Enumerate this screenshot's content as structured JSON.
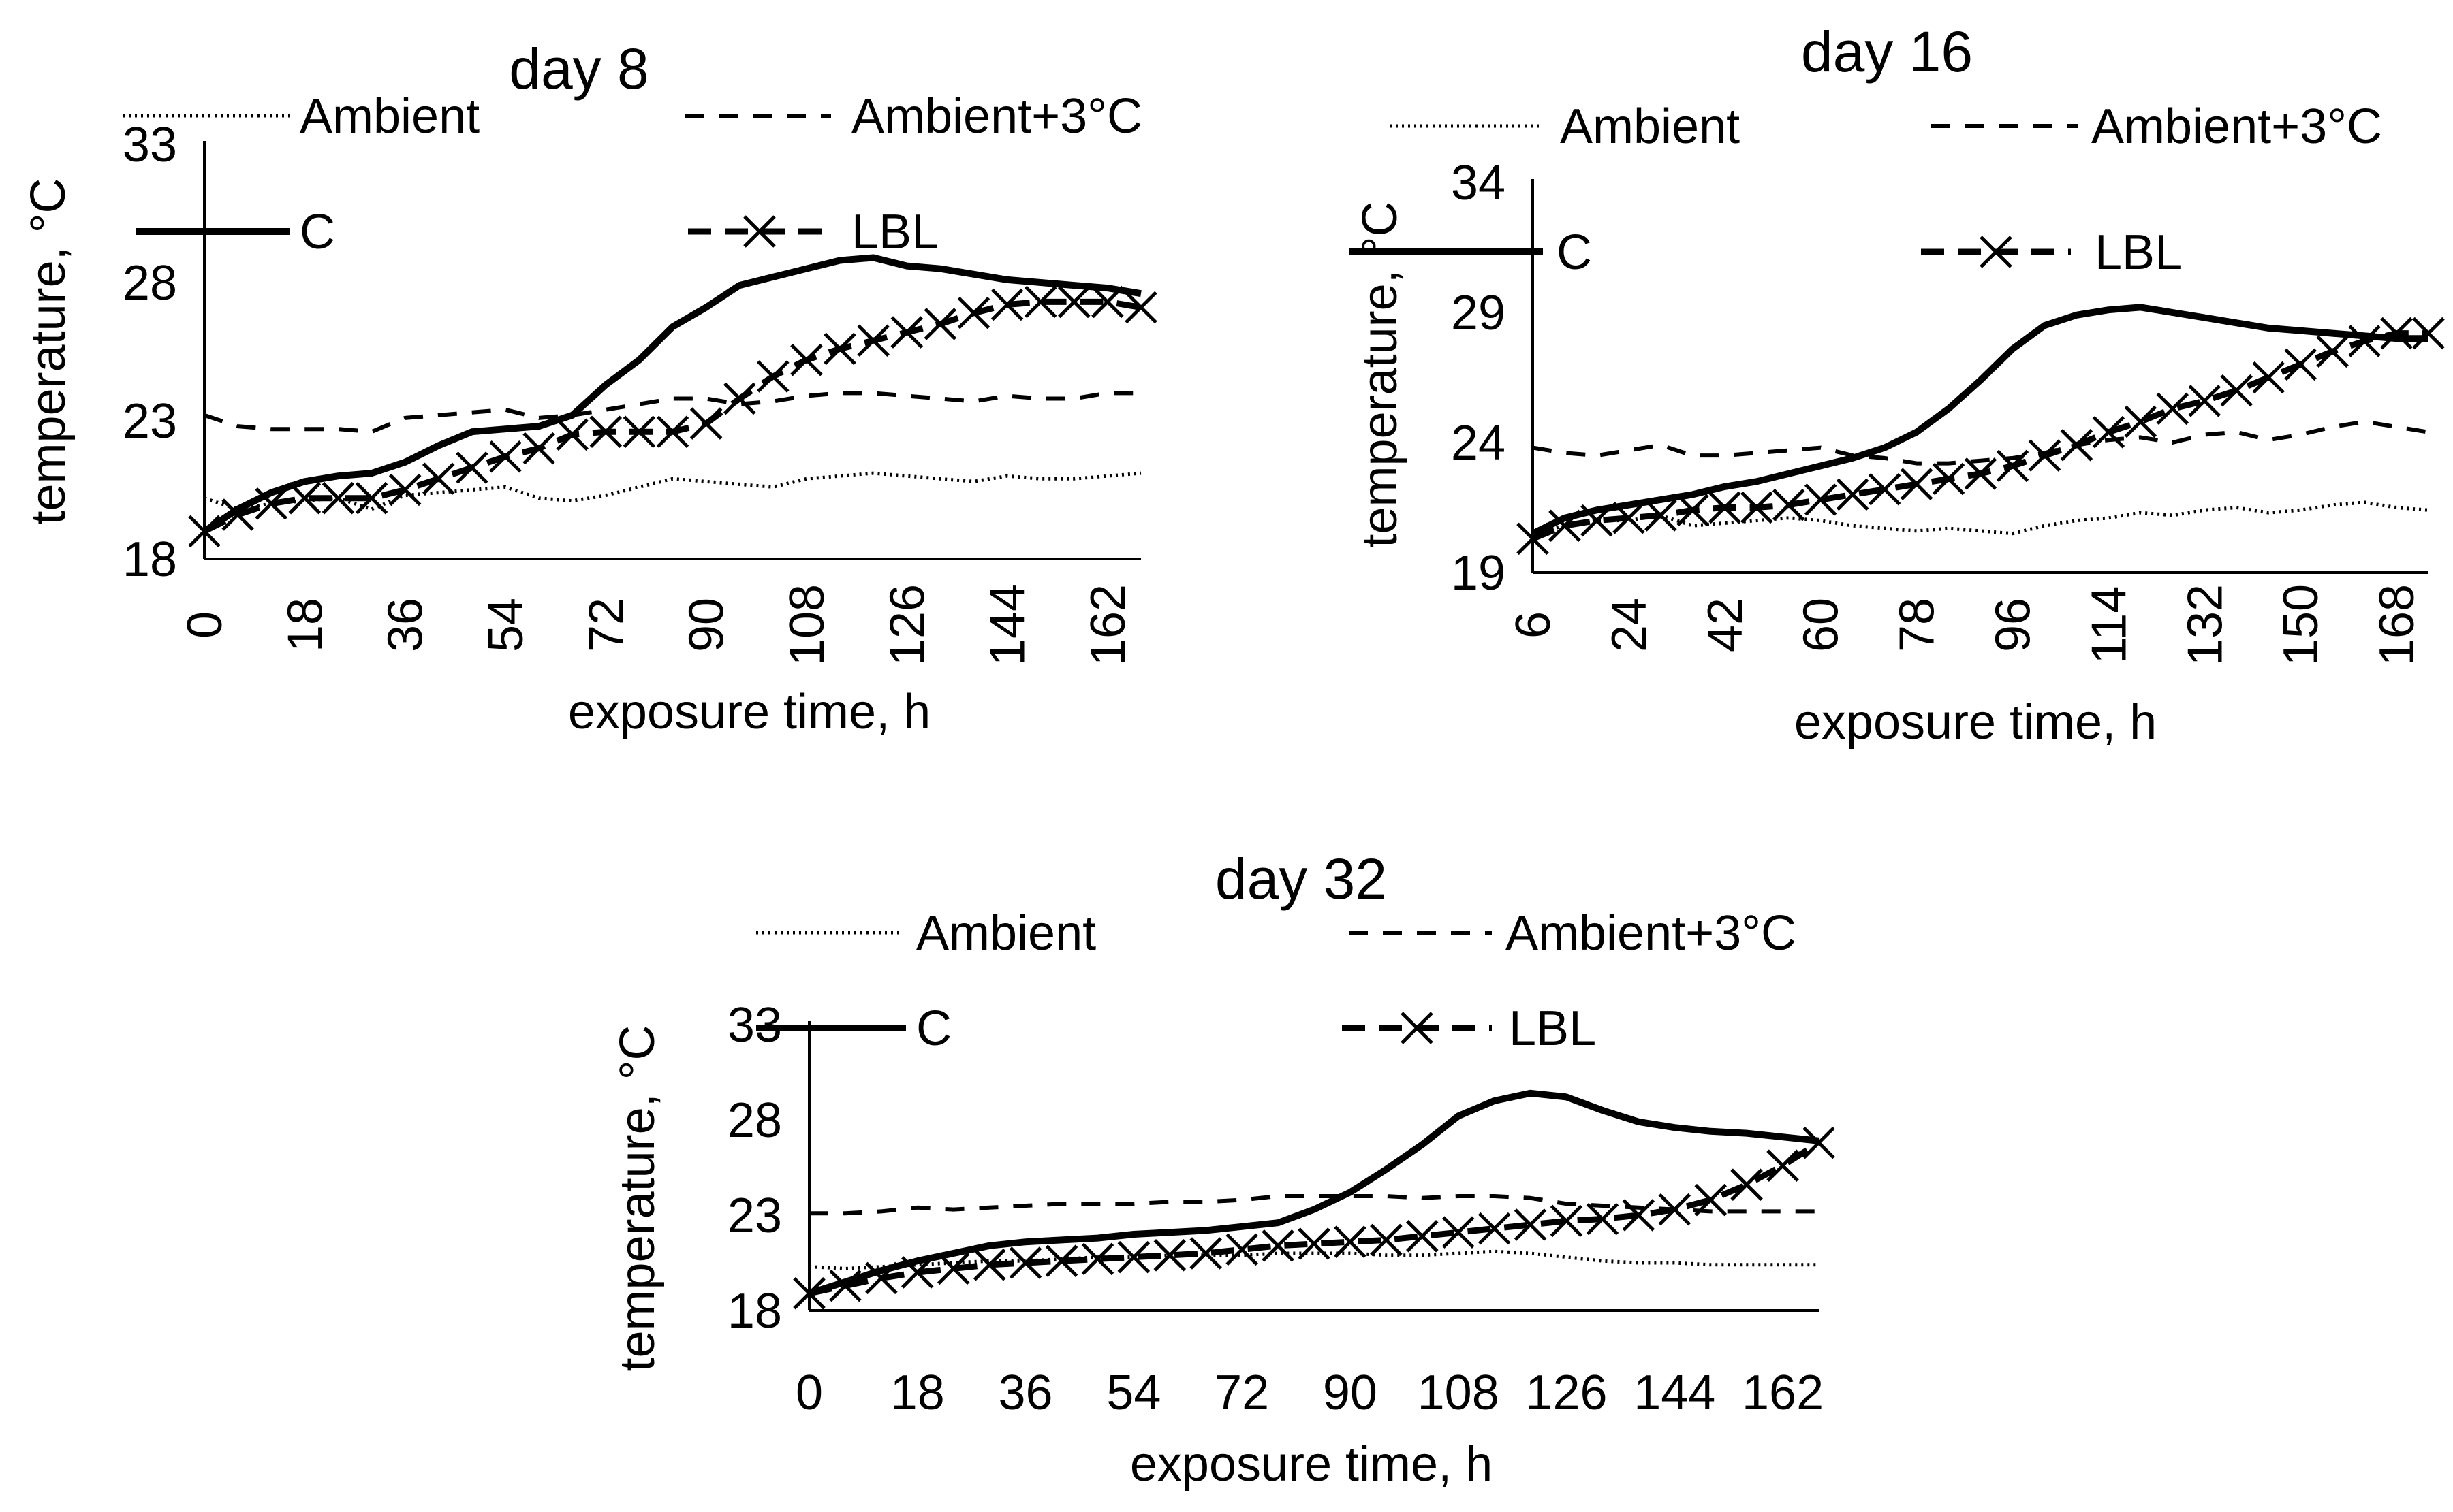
{
  "chart_data": [
    {
      "type": "line",
      "title": "day 8",
      "xlabel": "exposure time, h",
      "ylabel": "temperature, °C",
      "x_ticks": [
        "0",
        "18",
        "36",
        "54",
        "72",
        "90",
        "108",
        "126",
        "144",
        "162"
      ],
      "y_ticks": [
        "18",
        "23",
        "28",
        "33"
      ],
      "xlim": [
        0,
        168
      ],
      "ylim": [
        18,
        33
      ],
      "legend": [
        "Ambient",
        "Ambient+3°C",
        "C",
        "LBL"
      ],
      "x": [
        0,
        6,
        12,
        18,
        24,
        30,
        36,
        42,
        48,
        54,
        60,
        66,
        72,
        78,
        84,
        90,
        96,
        102,
        108,
        114,
        120,
        126,
        132,
        138,
        144,
        150,
        156,
        162,
        168
      ],
      "series": [
        {
          "name": "Ambient",
          "style": "dotted",
          "values": [
            20.2,
            19.8,
            20.0,
            20.1,
            20.2,
            19.8,
            20.3,
            20.4,
            20.5,
            20.6,
            20.2,
            20.1,
            20.3,
            20.6,
            20.9,
            20.8,
            20.7,
            20.6,
            20.9,
            21.0,
            21.1,
            21.0,
            20.9,
            20.8,
            21.0,
            20.9,
            20.9,
            21.0,
            21.1
          ]
        },
        {
          "name": "Ambient+3°C",
          "style": "dashed",
          "values": [
            23.2,
            22.8,
            22.7,
            22.7,
            22.7,
            22.6,
            23.1,
            23.2,
            23.3,
            23.4,
            23.1,
            23.2,
            23.4,
            23.6,
            23.8,
            23.8,
            23.6,
            23.7,
            23.9,
            24.0,
            24.0,
            23.9,
            23.8,
            23.7,
            23.9,
            23.8,
            23.8,
            24.0,
            24.0
          ]
        },
        {
          "name": "C",
          "style": "solid",
          "values": [
            19.0,
            19.8,
            20.4,
            20.8,
            21.0,
            21.1,
            21.5,
            22.1,
            22.6,
            22.7,
            22.8,
            23.2,
            24.3,
            25.2,
            26.4,
            27.1,
            27.9,
            28.2,
            28.5,
            28.8,
            28.9,
            28.6,
            28.5,
            28.3,
            28.1,
            28.0,
            27.9,
            27.8,
            27.6
          ]
        },
        {
          "name": "LBL",
          "style": "dash-x",
          "values": [
            19.0,
            19.6,
            20.0,
            20.2,
            20.2,
            20.2,
            20.5,
            20.9,
            21.3,
            21.7,
            22.0,
            22.5,
            22.6,
            22.6,
            22.6,
            22.9,
            23.8,
            24.6,
            25.2,
            25.6,
            25.9,
            26.2,
            26.5,
            26.9,
            27.2,
            27.3,
            27.3,
            27.3,
            27.1
          ]
        }
      ]
    },
    {
      "type": "line",
      "title": "day 16",
      "xlabel": "exposure time, h",
      "ylabel": "temperature, °C",
      "x_ticks": [
        "6",
        "24",
        "42",
        "60",
        "78",
        "96",
        "114",
        "132",
        "150",
        "168"
      ],
      "y_ticks": [
        "19",
        "24",
        "29",
        "34"
      ],
      "xlim": [
        6,
        174
      ],
      "ylim": [
        19,
        34
      ],
      "legend": [
        "Ambient",
        "Ambient+3°C",
        "C",
        "LBL"
      ],
      "x": [
        6,
        12,
        18,
        24,
        30,
        36,
        42,
        48,
        54,
        60,
        66,
        72,
        78,
        84,
        90,
        96,
        102,
        108,
        114,
        120,
        126,
        132,
        138,
        144,
        150,
        156,
        162,
        168,
        174
      ],
      "series": [
        {
          "name": "Ambient",
          "style": "dotted",
          "values": [
            20.5,
            20.8,
            21.0,
            21.0,
            21.2,
            20.8,
            20.9,
            21.0,
            21.1,
            21.0,
            20.8,
            20.7,
            20.6,
            20.7,
            20.6,
            20.5,
            20.8,
            21.0,
            21.1,
            21.3,
            21.2,
            21.4,
            21.5,
            21.3,
            21.4,
            21.6,
            21.7,
            21.5,
            21.4
          ]
        },
        {
          "name": "Ambient+3°C",
          "style": "dashed",
          "values": [
            23.8,
            23.6,
            23.5,
            23.7,
            23.9,
            23.5,
            23.5,
            23.6,
            23.7,
            23.8,
            23.5,
            23.4,
            23.2,
            23.2,
            23.3,
            23.4,
            23.6,
            23.9,
            24.1,
            24.2,
            24.0,
            24.3,
            24.4,
            24.1,
            24.3,
            24.6,
            24.8,
            24.6,
            24.4
          ]
        },
        {
          "name": "C",
          "style": "solid",
          "values": [
            20.5,
            21.1,
            21.4,
            21.6,
            21.8,
            22.0,
            22.3,
            22.5,
            22.8,
            23.1,
            23.4,
            23.8,
            24.4,
            25.3,
            26.4,
            27.6,
            28.5,
            28.9,
            29.1,
            29.2,
            29.0,
            28.8,
            28.6,
            28.4,
            28.3,
            28.2,
            28.1,
            28.0,
            28.0
          ]
        },
        {
          "name": "LBL",
          "style": "dash-x",
          "values": [
            20.3,
            20.8,
            21.0,
            21.1,
            21.2,
            21.4,
            21.5,
            21.5,
            21.6,
            21.8,
            22.0,
            22.2,
            22.4,
            22.6,
            22.8,
            23.1,
            23.5,
            23.9,
            24.4,
            24.8,
            25.3,
            25.6,
            26.0,
            26.5,
            27.0,
            27.5,
            27.9,
            28.2,
            28.2
          ]
        }
      ]
    },
    {
      "type": "line",
      "title": "day 32",
      "xlabel": "exposure time, h",
      "ylabel": "temperature, °C",
      "x_ticks": [
        "0",
        "18",
        "36",
        "54",
        "72",
        "90",
        "108",
        "126",
        "144",
        "162"
      ],
      "y_ticks": [
        "18",
        "23",
        "28",
        "33"
      ],
      "xlim": [
        0,
        168
      ],
      "ylim": [
        18,
        33
      ],
      "legend": [
        "Ambient",
        "Ambient+3°C",
        "C",
        "LBL"
      ],
      "x": [
        0,
        6,
        12,
        18,
        24,
        30,
        36,
        42,
        48,
        54,
        60,
        66,
        72,
        78,
        84,
        90,
        96,
        102,
        108,
        114,
        120,
        126,
        132,
        138,
        144,
        150,
        156,
        162,
        168
      ],
      "series": [
        {
          "name": "Ambient",
          "style": "dotted",
          "values": [
            20.3,
            20.2,
            20.3,
            20.4,
            20.5,
            20.6,
            20.6,
            20.7,
            20.8,
            20.8,
            20.9,
            20.9,
            20.9,
            21.0,
            21.0,
            21.0,
            20.9,
            20.9,
            21.0,
            21.1,
            21.0,
            20.8,
            20.6,
            20.5,
            20.5,
            20.4,
            20.4,
            20.4,
            20.4
          ]
        },
        {
          "name": "Ambient+3°C",
          "style": "dashed",
          "values": [
            23.1,
            23.1,
            23.2,
            23.4,
            23.3,
            23.4,
            23.5,
            23.6,
            23.6,
            23.6,
            23.7,
            23.7,
            23.8,
            24.0,
            24.0,
            24.0,
            24.0,
            23.9,
            24.0,
            24.0,
            23.9,
            23.6,
            23.5,
            23.4,
            23.3,
            23.2,
            23.2,
            23.2,
            23.2
          ]
        },
        {
          "name": "C",
          "style": "solid",
          "values": [
            18.9,
            19.5,
            20.1,
            20.6,
            21.0,
            21.4,
            21.6,
            21.7,
            21.8,
            22.0,
            22.1,
            22.2,
            22.4,
            22.6,
            23.3,
            24.2,
            25.4,
            26.7,
            28.2,
            29.0,
            29.4,
            29.2,
            28.5,
            27.9,
            27.6,
            27.4,
            27.3,
            27.1,
            26.9
          ]
        },
        {
          "name": "LBL",
          "style": "dash-x",
          "values": [
            18.9,
            19.3,
            19.7,
            20.0,
            20.2,
            20.4,
            20.5,
            20.6,
            20.7,
            20.8,
            20.9,
            21.0,
            21.2,
            21.4,
            21.5,
            21.6,
            21.7,
            21.9,
            22.1,
            22.3,
            22.5,
            22.7,
            22.8,
            23.0,
            23.3,
            23.8,
            24.6,
            25.6,
            26.8
          ]
        }
      ]
    }
  ]
}
